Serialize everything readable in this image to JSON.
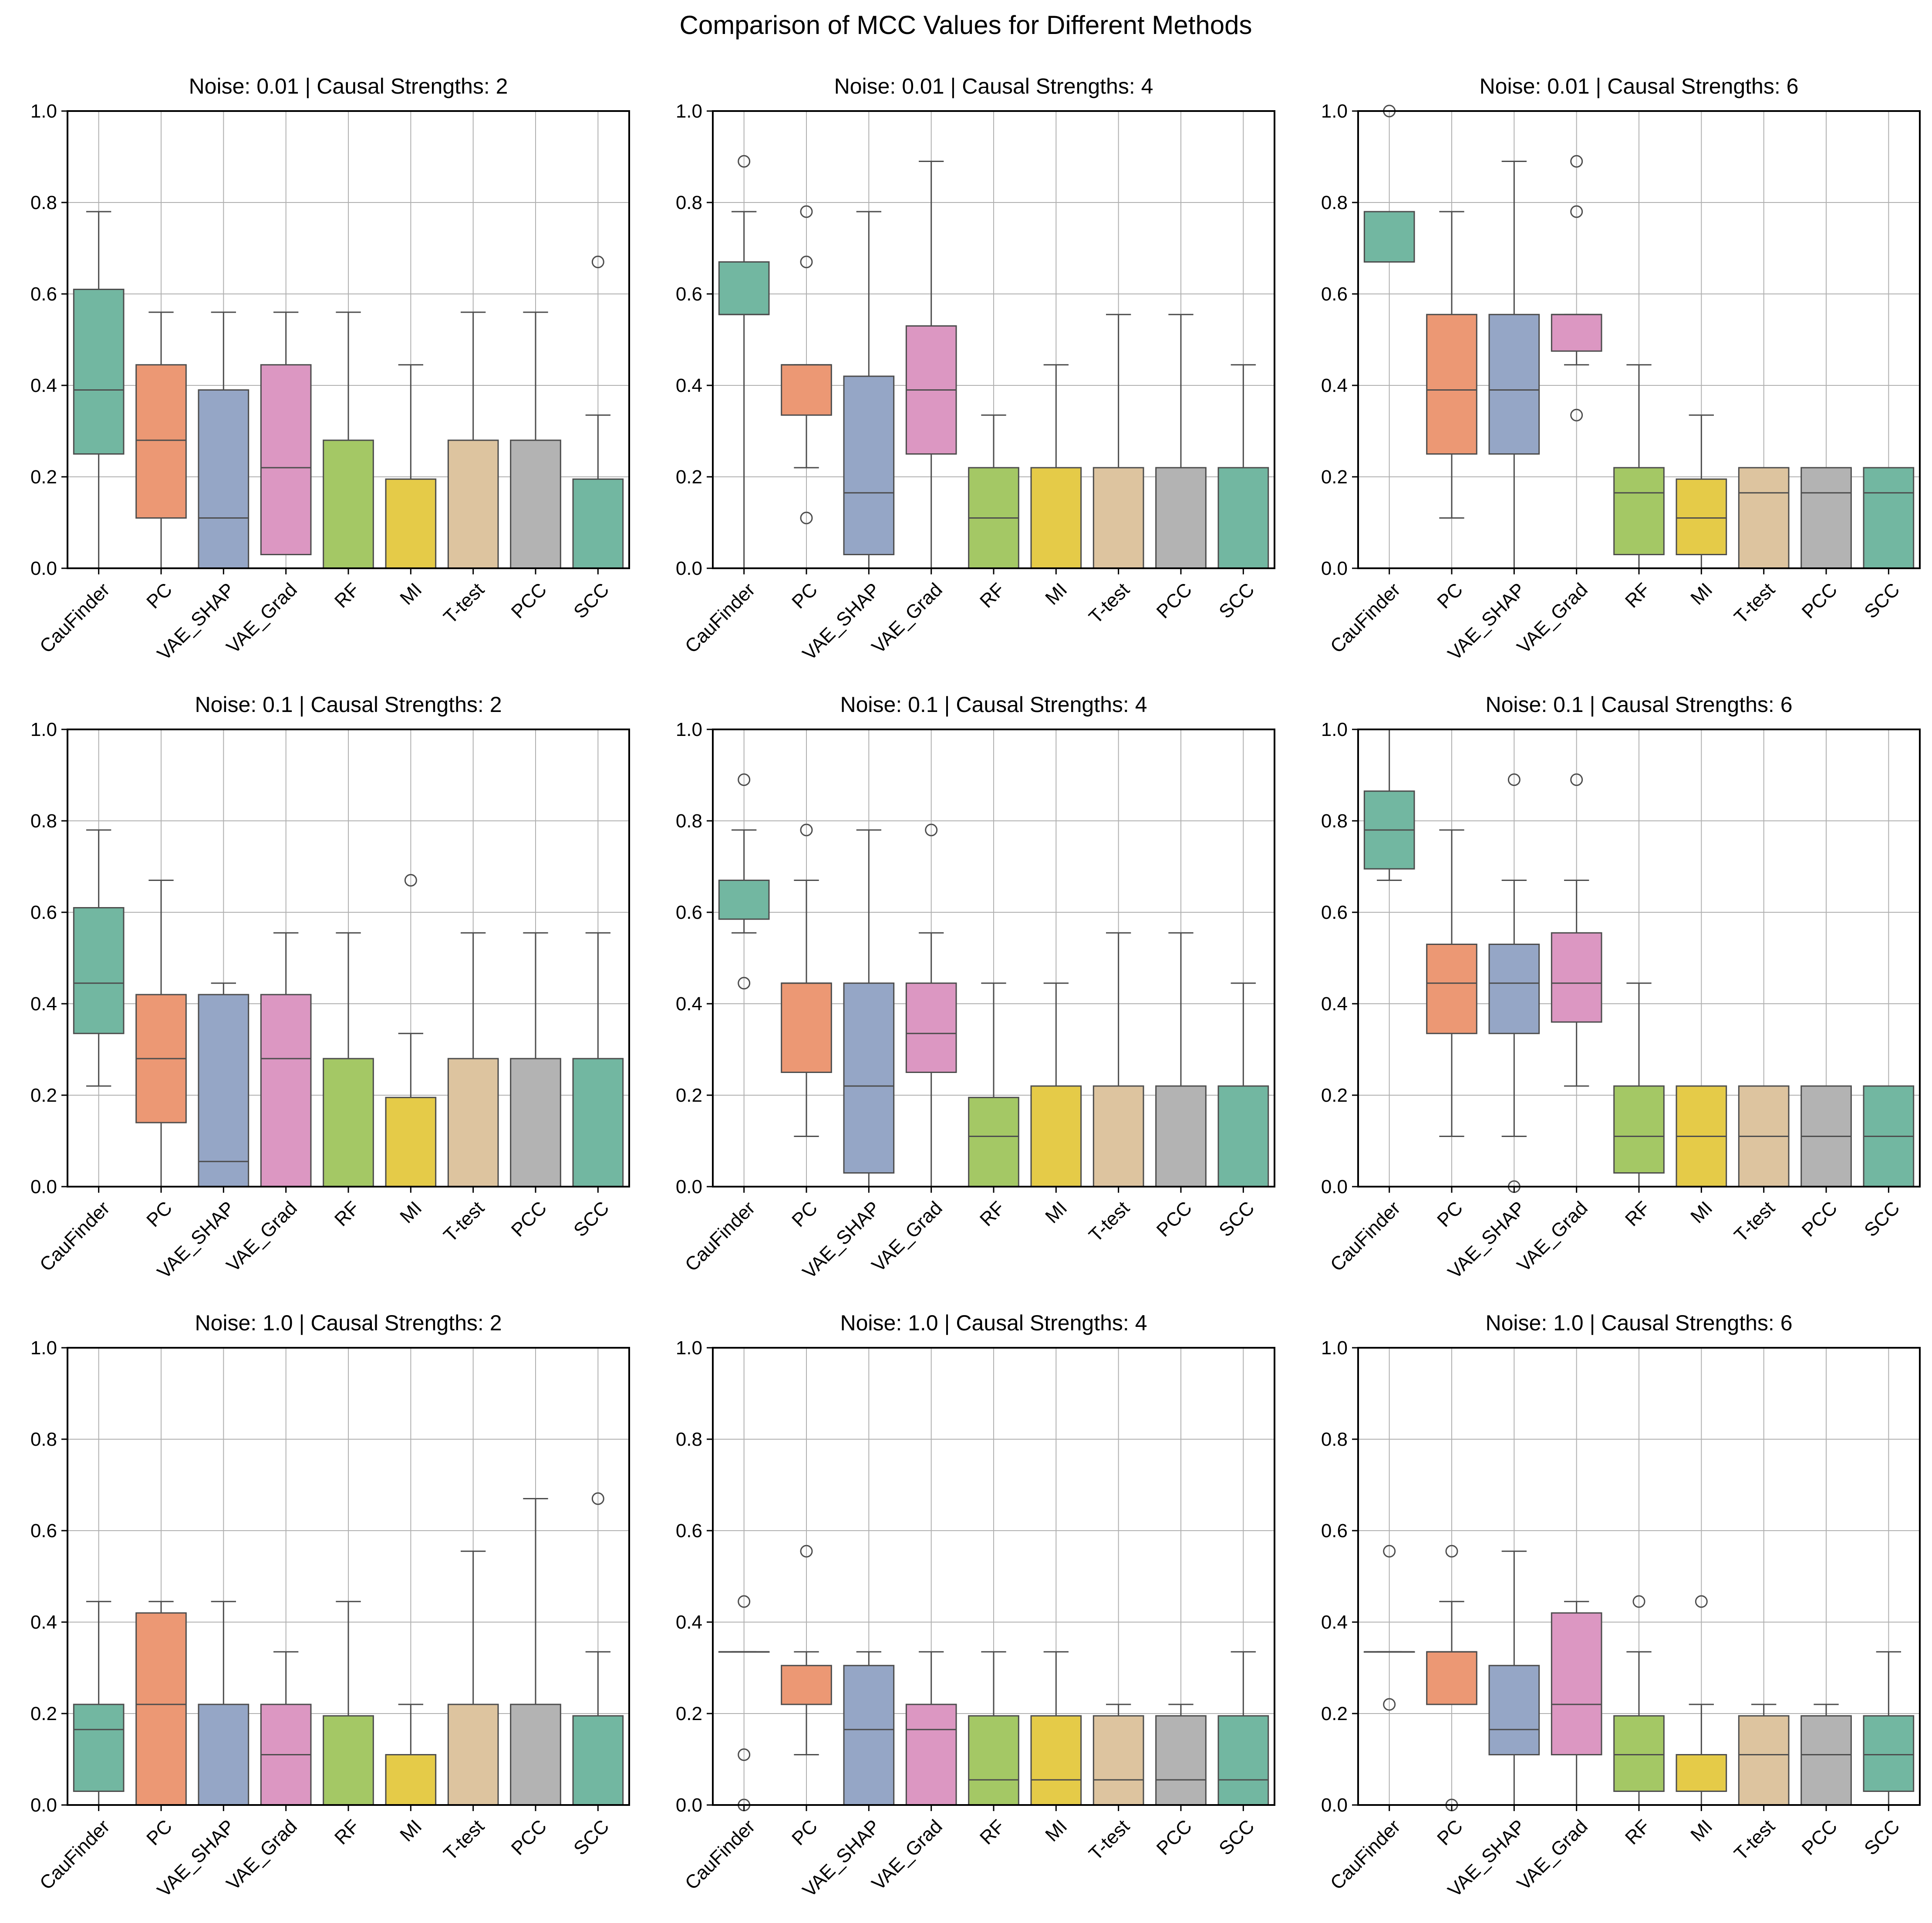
{
  "figure_title": "Comparison of MCC Values for Different Methods",
  "palette": [
    "#72b7a1",
    "#ec9874",
    "#95a6c6",
    "#dc97c2",
    "#a4c865",
    "#e5cb48",
    "#ddc49f",
    "#b3b3b3",
    "#72b7a1"
  ],
  "chart_data": [
    {
      "type": "box",
      "title": "Noise: 0.01 | Causal Strengths: 2",
      "categories": [
        "CauFinder",
        "PC",
        "VAE_SHAP",
        "VAE_Grad",
        "RF",
        "MI",
        "T-test",
        "PCC",
        "SCC"
      ],
      "ylim": [
        0,
        1.0
      ],
      "yticks": [
        "0.0",
        "0.2",
        "0.4",
        "0.6",
        "0.8",
        "1.0"
      ],
      "grid": true,
      "boxes": [
        {
          "whislo": 0,
          "q1": 0.25,
          "med": 0.39,
          "q3": 0.61,
          "whishi": 0.78,
          "fliers": []
        },
        {
          "whislo": 0,
          "q1": 0.11,
          "med": 0.28,
          "q3": 0.445,
          "whishi": 0.56,
          "fliers": []
        },
        {
          "whislo": 0,
          "q1": 0,
          "med": 0.11,
          "q3": 0.39,
          "whishi": 0.56,
          "fliers": []
        },
        {
          "whislo": 0.03,
          "q1": 0.03,
          "med": 0.22,
          "q3": 0.445,
          "whishi": 0.56,
          "fliers": []
        },
        {
          "whislo": 0,
          "q1": 0,
          "med": 0,
          "q3": 0.28,
          "whishi": 0.56,
          "fliers": []
        },
        {
          "whislo": 0,
          "q1": 0,
          "med": 0,
          "q3": 0.195,
          "whishi": 0.445,
          "fliers": []
        },
        {
          "whislo": 0,
          "q1": 0,
          "med": 0,
          "q3": 0.28,
          "whishi": 0.56,
          "fliers": []
        },
        {
          "whislo": 0,
          "q1": 0,
          "med": 0,
          "q3": 0.28,
          "whishi": 0.56,
          "fliers": []
        },
        {
          "whislo": 0,
          "q1": 0,
          "med": 0,
          "q3": 0.195,
          "whishi": 0.335,
          "fliers": [
            0.67
          ]
        }
      ]
    },
    {
      "type": "box",
      "title": "Noise: 0.01 | Causal Strengths: 4",
      "categories": [
        "CauFinder",
        "PC",
        "VAE_SHAP",
        "VAE_Grad",
        "RF",
        "MI",
        "T-test",
        "PCC",
        "SCC"
      ],
      "ylim": [
        0,
        1.0
      ],
      "yticks": [
        "0.0",
        "0.2",
        "0.4",
        "0.6",
        "0.8",
        "1.0"
      ],
      "grid": true,
      "boxes": [
        {
          "whislo": 0,
          "q1": 0.555,
          "med": 0.555,
          "q3": 0.67,
          "whishi": 0.78,
          "fliers": [
            0.89
          ]
        },
        {
          "whislo": 0.22,
          "q1": 0.335,
          "med": 0.445,
          "q3": 0.445,
          "whishi": 0.445,
          "fliers": [
            0.78,
            0.67,
            0.11
          ]
        },
        {
          "whislo": 0,
          "q1": 0.03,
          "med": 0.165,
          "q3": 0.42,
          "whishi": 0.78,
          "fliers": []
        },
        {
          "whislo": 0,
          "q1": 0.25,
          "med": 0.39,
          "q3": 0.53,
          "whishi": 0.89,
          "fliers": []
        },
        {
          "whislo": 0,
          "q1": 0,
          "med": 0.11,
          "q3": 0.22,
          "whishi": 0.335,
          "fliers": []
        },
        {
          "whislo": 0,
          "q1": 0,
          "med": 0,
          "q3": 0.22,
          "whishi": 0.445,
          "fliers": []
        },
        {
          "whislo": 0,
          "q1": 0,
          "med": 0,
          "q3": 0.22,
          "whishi": 0.555,
          "fliers": []
        },
        {
          "whislo": 0,
          "q1": 0,
          "med": 0,
          "q3": 0.22,
          "whishi": 0.555,
          "fliers": []
        },
        {
          "whislo": 0,
          "q1": 0,
          "med": 0,
          "q3": 0.22,
          "whishi": 0.445,
          "fliers": []
        }
      ]
    },
    {
      "type": "box",
      "title": "Noise: 0.01 | Causal Strengths: 6",
      "categories": [
        "CauFinder",
        "PC",
        "VAE_SHAP",
        "VAE_Grad",
        "RF",
        "MI",
        "T-test",
        "PCC",
        "SCC"
      ],
      "ylim": [
        0,
        1.0
      ],
      "yticks": [
        "0.0",
        "0.2",
        "0.4",
        "0.6",
        "0.8",
        "1.0"
      ],
      "grid": true,
      "boxes": [
        {
          "whislo": 0.67,
          "q1": 0.67,
          "med": 0.78,
          "q3": 0.78,
          "whishi": 0.78,
          "fliers": [
            1.0
          ]
        },
        {
          "whislo": 0.11,
          "q1": 0.25,
          "med": 0.39,
          "q3": 0.555,
          "whishi": 0.78,
          "fliers": []
        },
        {
          "whislo": 0,
          "q1": 0.25,
          "med": 0.39,
          "q3": 0.555,
          "whishi": 0.89,
          "fliers": []
        },
        {
          "whislo": 0.445,
          "q1": 0.475,
          "med": 0.555,
          "q3": 0.555,
          "whishi": 0.555,
          "fliers": [
            0.89,
            0.78,
            0.335
          ]
        },
        {
          "whislo": 0,
          "q1": 0.03,
          "med": 0.165,
          "q3": 0.22,
          "whishi": 0.445,
          "fliers": []
        },
        {
          "whislo": 0,
          "q1": 0.03,
          "med": 0.11,
          "q3": 0.195,
          "whishi": 0.335,
          "fliers": []
        },
        {
          "whislo": 0,
          "q1": 0,
          "med": 0.165,
          "q3": 0.22,
          "whishi": 0.22,
          "fliers": []
        },
        {
          "whislo": 0,
          "q1": 0,
          "med": 0.165,
          "q3": 0.22,
          "whishi": 0.22,
          "fliers": []
        },
        {
          "whislo": 0,
          "q1": 0,
          "med": 0.165,
          "q3": 0.22,
          "whishi": 0.22,
          "fliers": []
        }
      ]
    },
    {
      "type": "box",
      "title": "Noise: 0.1 | Causal Strengths: 2",
      "categories": [
        "CauFinder",
        "PC",
        "VAE_SHAP",
        "VAE_Grad",
        "RF",
        "MI",
        "T-test",
        "PCC",
        "SCC"
      ],
      "ylim": [
        0,
        1.0
      ],
      "yticks": [
        "0.0",
        "0.2",
        "0.4",
        "0.6",
        "0.8",
        "1.0"
      ],
      "grid": true,
      "boxes": [
        {
          "whislo": 0.22,
          "q1": 0.335,
          "med": 0.445,
          "q3": 0.61,
          "whishi": 0.78,
          "fliers": []
        },
        {
          "whislo": 0,
          "q1": 0.14,
          "med": 0.28,
          "q3": 0.42,
          "whishi": 0.67,
          "fliers": []
        },
        {
          "whislo": 0,
          "q1": 0,
          "med": 0.055,
          "q3": 0.42,
          "whishi": 0.445,
          "fliers": []
        },
        {
          "whislo": 0,
          "q1": 0,
          "med": 0.28,
          "q3": 0.42,
          "whishi": 0.555,
          "fliers": []
        },
        {
          "whislo": 0,
          "q1": 0,
          "med": 0,
          "q3": 0.28,
          "whishi": 0.555,
          "fliers": []
        },
        {
          "whislo": 0,
          "q1": 0,
          "med": 0,
          "q3": 0.195,
          "whishi": 0.335,
          "fliers": [
            0.67
          ]
        },
        {
          "whislo": 0,
          "q1": 0,
          "med": 0,
          "q3": 0.28,
          "whishi": 0.555,
          "fliers": []
        },
        {
          "whislo": 0,
          "q1": 0,
          "med": 0,
          "q3": 0.28,
          "whishi": 0.555,
          "fliers": []
        },
        {
          "whislo": 0,
          "q1": 0,
          "med": 0,
          "q3": 0.28,
          "whishi": 0.555,
          "fliers": []
        }
      ]
    },
    {
      "type": "box",
      "title": "Noise: 0.1 | Causal Strengths: 4",
      "categories": [
        "CauFinder",
        "PC",
        "VAE_SHAP",
        "VAE_Grad",
        "RF",
        "MI",
        "T-test",
        "PCC",
        "SCC"
      ],
      "ylim": [
        0,
        1.0
      ],
      "yticks": [
        "0.0",
        "0.2",
        "0.4",
        "0.6",
        "0.8",
        "1.0"
      ],
      "grid": true,
      "boxes": [
        {
          "whislo": 0.555,
          "q1": 0.585,
          "med": 0.67,
          "q3": 0.67,
          "whishi": 0.78,
          "fliers": [
            0.89,
            0.445
          ]
        },
        {
          "whislo": 0.11,
          "q1": 0.25,
          "med": 0.445,
          "q3": 0.445,
          "whishi": 0.67,
          "fliers": [
            0.78
          ]
        },
        {
          "whislo": 0,
          "q1": 0.03,
          "med": 0.22,
          "q3": 0.445,
          "whishi": 0.78,
          "fliers": []
        },
        {
          "whislo": 0,
          "q1": 0.25,
          "med": 0.335,
          "q3": 0.445,
          "whishi": 0.555,
          "fliers": [
            0.78
          ]
        },
        {
          "whislo": 0,
          "q1": 0,
          "med": 0.11,
          "q3": 0.195,
          "whishi": 0.445,
          "fliers": []
        },
        {
          "whislo": 0,
          "q1": 0,
          "med": 0,
          "q3": 0.22,
          "whishi": 0.445,
          "fliers": []
        },
        {
          "whislo": 0,
          "q1": 0,
          "med": 0,
          "q3": 0.22,
          "whishi": 0.555,
          "fliers": []
        },
        {
          "whislo": 0,
          "q1": 0,
          "med": 0,
          "q3": 0.22,
          "whishi": 0.555,
          "fliers": []
        },
        {
          "whislo": 0,
          "q1": 0,
          "med": 0,
          "q3": 0.22,
          "whishi": 0.445,
          "fliers": []
        }
      ]
    },
    {
      "type": "box",
      "title": "Noise: 0.1 | Causal Strengths: 6",
      "categories": [
        "CauFinder",
        "PC",
        "VAE_SHAP",
        "VAE_Grad",
        "RF",
        "MI",
        "T-test",
        "PCC",
        "SCC"
      ],
      "ylim": [
        0,
        1.0
      ],
      "yticks": [
        "0.0",
        "0.2",
        "0.4",
        "0.6",
        "0.8",
        "1.0"
      ],
      "grid": true,
      "boxes": [
        {
          "whislo": 0.67,
          "q1": 0.695,
          "med": 0.78,
          "q3": 0.865,
          "whishi": 1.0,
          "fliers": []
        },
        {
          "whislo": 0.11,
          "q1": 0.335,
          "med": 0.445,
          "q3": 0.53,
          "whishi": 0.78,
          "fliers": []
        },
        {
          "whislo": 0.11,
          "q1": 0.335,
          "med": 0.445,
          "q3": 0.53,
          "whishi": 0.67,
          "fliers": [
            0.89,
            0
          ]
        },
        {
          "whislo": 0.22,
          "q1": 0.36,
          "med": 0.445,
          "q3": 0.555,
          "whishi": 0.67,
          "fliers": [
            0.89
          ]
        },
        {
          "whislo": 0,
          "q1": 0.03,
          "med": 0.11,
          "q3": 0.22,
          "whishi": 0.445,
          "fliers": []
        },
        {
          "whislo": 0,
          "q1": 0,
          "med": 0.11,
          "q3": 0.22,
          "whishi": 0.22,
          "fliers": []
        },
        {
          "whislo": 0,
          "q1": 0,
          "med": 0.11,
          "q3": 0.22,
          "whishi": 0.22,
          "fliers": []
        },
        {
          "whislo": 0,
          "q1": 0,
          "med": 0.11,
          "q3": 0.22,
          "whishi": 0.22,
          "fliers": []
        },
        {
          "whislo": 0,
          "q1": 0,
          "med": 0.11,
          "q3": 0.22,
          "whishi": 0.22,
          "fliers": []
        }
      ]
    },
    {
      "type": "box",
      "title": "Noise: 1.0 | Causal Strengths: 2",
      "categories": [
        "CauFinder",
        "PC",
        "VAE_SHAP",
        "VAE_Grad",
        "RF",
        "MI",
        "T-test",
        "PCC",
        "SCC"
      ],
      "ylim": [
        0,
        1.0
      ],
      "yticks": [
        "0.0",
        "0.2",
        "0.4",
        "0.6",
        "0.8",
        "1.0"
      ],
      "grid": true,
      "boxes": [
        {
          "whislo": 0,
          "q1": 0.03,
          "med": 0.165,
          "q3": 0.22,
          "whishi": 0.445,
          "fliers": []
        },
        {
          "whislo": 0,
          "q1": 0,
          "med": 0.22,
          "q3": 0.42,
          "whishi": 0.445,
          "fliers": []
        },
        {
          "whislo": 0,
          "q1": 0,
          "med": 0,
          "q3": 0.22,
          "whishi": 0.445,
          "fliers": []
        },
        {
          "whislo": 0,
          "q1": 0,
          "med": 0.11,
          "q3": 0.22,
          "whishi": 0.335,
          "fliers": []
        },
        {
          "whislo": 0,
          "q1": 0,
          "med": 0,
          "q3": 0.195,
          "whishi": 0.445,
          "fliers": []
        },
        {
          "whislo": 0,
          "q1": 0,
          "med": 0,
          "q3": 0.11,
          "whishi": 0.22,
          "fliers": []
        },
        {
          "whislo": 0,
          "q1": 0,
          "med": 0,
          "q3": 0.22,
          "whishi": 0.555,
          "fliers": []
        },
        {
          "whislo": 0,
          "q1": 0,
          "med": 0,
          "q3": 0.22,
          "whishi": 0.67,
          "fliers": []
        },
        {
          "whislo": 0,
          "q1": 0,
          "med": 0,
          "q3": 0.195,
          "whishi": 0.335,
          "fliers": [
            0.67
          ]
        }
      ]
    },
    {
      "type": "box",
      "title": "Noise: 1.0 | Causal Strengths: 4",
      "categories": [
        "CauFinder",
        "PC",
        "VAE_SHAP",
        "VAE_Grad",
        "RF",
        "MI",
        "T-test",
        "PCC",
        "SCC"
      ],
      "ylim": [
        0,
        1.0
      ],
      "yticks": [
        "0.0",
        "0.2",
        "0.4",
        "0.6",
        "0.8",
        "1.0"
      ],
      "grid": true,
      "boxes": [
        {
          "whislo": 0.335,
          "q1": 0.335,
          "med": 0.335,
          "q3": 0.335,
          "whishi": 0.335,
          "fliers": [
            0.445,
            0.11,
            0
          ]
        },
        {
          "whislo": 0.11,
          "q1": 0.22,
          "med": 0.22,
          "q3": 0.305,
          "whishi": 0.335,
          "fliers": [
            0.555
          ]
        },
        {
          "whislo": 0,
          "q1": 0,
          "med": 0.165,
          "q3": 0.305,
          "whishi": 0.335,
          "fliers": []
        },
        {
          "whislo": 0,
          "q1": 0,
          "med": 0.165,
          "q3": 0.22,
          "whishi": 0.335,
          "fliers": []
        },
        {
          "whislo": 0,
          "q1": 0,
          "med": 0.055,
          "q3": 0.195,
          "whishi": 0.335,
          "fliers": []
        },
        {
          "whislo": 0,
          "q1": 0,
          "med": 0.055,
          "q3": 0.195,
          "whishi": 0.335,
          "fliers": []
        },
        {
          "whislo": 0,
          "q1": 0,
          "med": 0.055,
          "q3": 0.195,
          "whishi": 0.22,
          "fliers": []
        },
        {
          "whislo": 0,
          "q1": 0,
          "med": 0.055,
          "q3": 0.195,
          "whishi": 0.22,
          "fliers": []
        },
        {
          "whislo": 0,
          "q1": 0,
          "med": 0.055,
          "q3": 0.195,
          "whishi": 0.335,
          "fliers": []
        }
      ]
    },
    {
      "type": "box",
      "title": "Noise: 1.0 | Causal Strengths: 6",
      "categories": [
        "CauFinder",
        "PC",
        "VAE_SHAP",
        "VAE_Grad",
        "RF",
        "MI",
        "T-test",
        "PCC",
        "SCC"
      ],
      "ylim": [
        0,
        1.0
      ],
      "yticks": [
        "0.0",
        "0.2",
        "0.4",
        "0.6",
        "0.8",
        "1.0"
      ],
      "grid": true,
      "boxes": [
        {
          "whislo": 0.335,
          "q1": 0.335,
          "med": 0.335,
          "q3": 0.335,
          "whishi": 0.335,
          "fliers": [
            0.555,
            0.22
          ]
        },
        {
          "whislo": 0.22,
          "q1": 0.22,
          "med": 0.335,
          "q3": 0.335,
          "whishi": 0.445,
          "fliers": [
            0.555,
            0
          ]
        },
        {
          "whislo": 0,
          "q1": 0.11,
          "med": 0.165,
          "q3": 0.305,
          "whishi": 0.555,
          "fliers": []
        },
        {
          "whislo": 0,
          "q1": 0.11,
          "med": 0.22,
          "q3": 0.42,
          "whishi": 0.445,
          "fliers": []
        },
        {
          "whislo": 0,
          "q1": 0.03,
          "med": 0.11,
          "q3": 0.195,
          "whishi": 0.335,
          "fliers": [
            0.445
          ]
        },
        {
          "whislo": 0,
          "q1": 0.03,
          "med": 0.03,
          "q3": 0.11,
          "whishi": 0.22,
          "fliers": [
            0.445
          ]
        },
        {
          "whislo": 0,
          "q1": 0,
          "med": 0.11,
          "q3": 0.195,
          "whishi": 0.22,
          "fliers": []
        },
        {
          "whislo": 0,
          "q1": 0,
          "med": 0.11,
          "q3": 0.195,
          "whishi": 0.22,
          "fliers": []
        },
        {
          "whislo": 0,
          "q1": 0.03,
          "med": 0.11,
          "q3": 0.195,
          "whishi": 0.335,
          "fliers": []
        }
      ]
    }
  ]
}
